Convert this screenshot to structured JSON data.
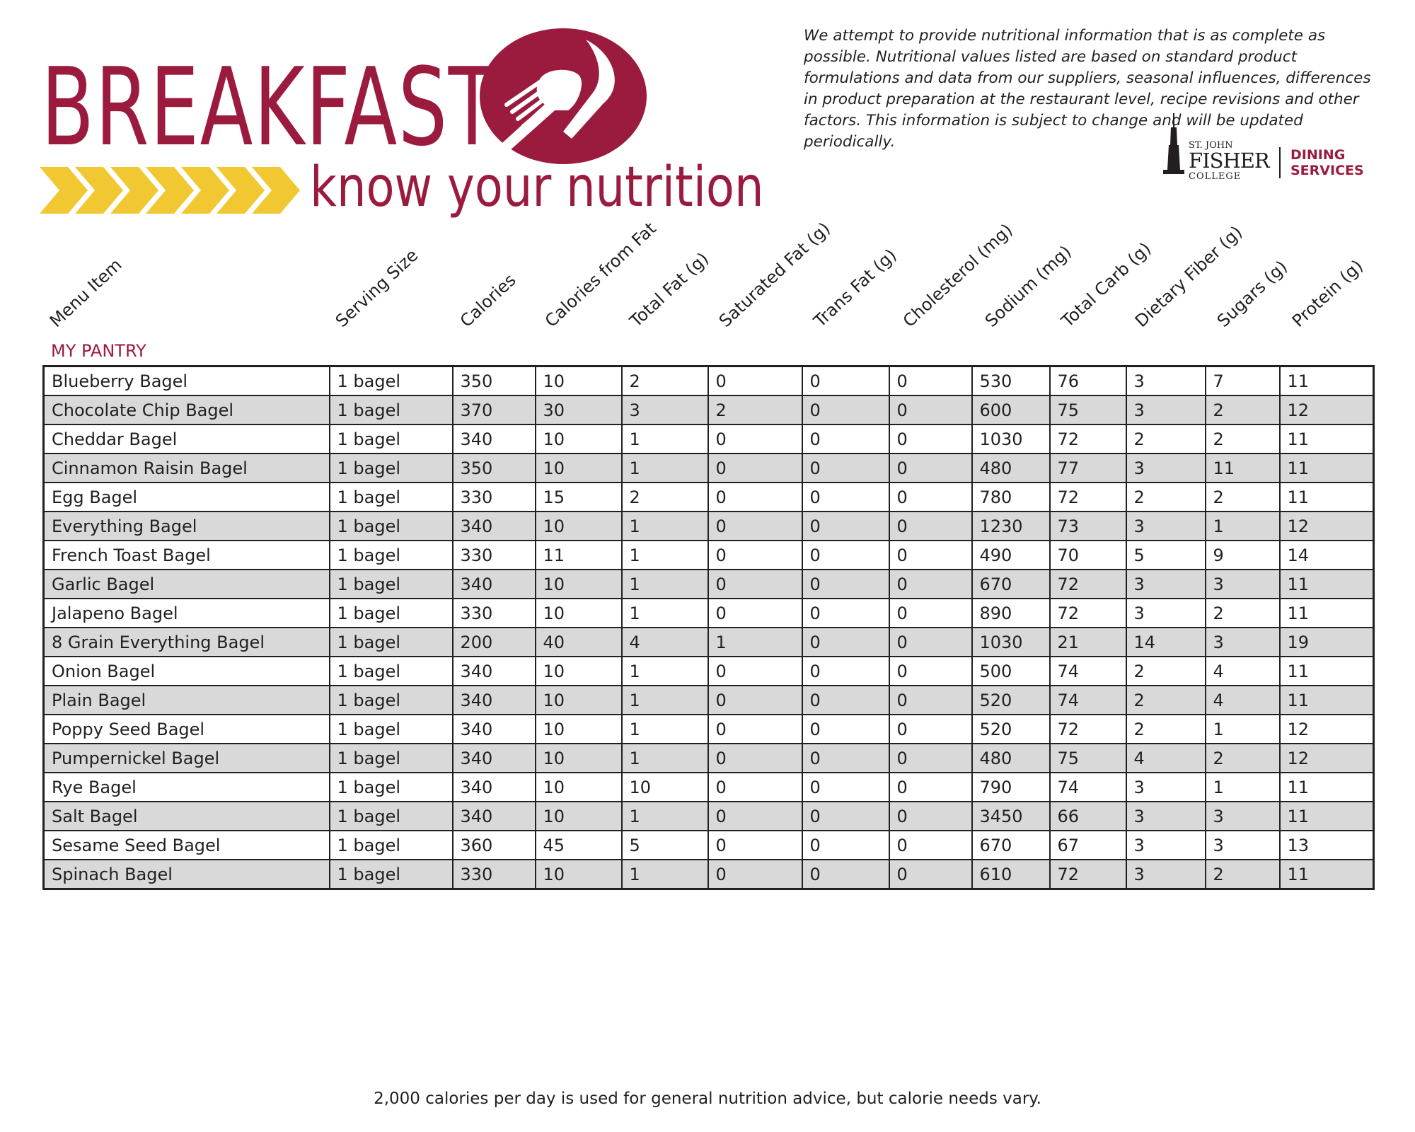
{
  "header": {
    "title": "BREAKFAST",
    "subtitle": "know your nutrition"
  },
  "disclaimer": "We attempt to provide nutritional information that is as complete as possible. Nutritional values listed are based on standard product formulations and data from our suppliers, seasonal influences, differences in product preparation at the restaurant level, recipe revisions and other factors. This information is subject to change and will be updated periodically.",
  "college_logo": {
    "line1": "ST. JOHN",
    "line2": "FISHER",
    "line3": "COLLEGE",
    "dining_line1": "DINING",
    "dining_line2": "SERVICES"
  },
  "colors": {
    "brand": "#9b1b3f",
    "arrows": "#f2c832",
    "row_shade": "#d9d9d9"
  },
  "icons": [
    "fork-knife-icon",
    "chevron-arrows-icon",
    "tower-icon"
  ],
  "table": {
    "section": "MY PANTRY",
    "columns": [
      "Menu Item",
      "Serving Size",
      "Calories",
      "Calories from Fat",
      "Total Fat (g)",
      "Saturated Fat (g)",
      "Trans Fat (g)",
      "Cholesterol (mg)",
      "Sodium (mg)",
      "Total Carb (g)",
      "Dietary Fiber (g)",
      "Sugars (g)",
      "Protein (g)"
    ],
    "rows": [
      [
        "Blueberry Bagel",
        "1 bagel",
        "350",
        "10",
        "2",
        "0",
        "0",
        "0",
        "530",
        "76",
        "3",
        "7",
        "11"
      ],
      [
        "Chocolate Chip Bagel",
        "1 bagel",
        "370",
        "30",
        "3",
        "2",
        "0",
        "0",
        "600",
        "75",
        "3",
        "2",
        "12"
      ],
      [
        "Cheddar Bagel",
        "1 bagel",
        "340",
        "10",
        "1",
        "0",
        "0",
        "0",
        "1030",
        "72",
        "2",
        "2",
        "11"
      ],
      [
        "Cinnamon Raisin Bagel",
        "1 bagel",
        "350",
        "10",
        "1",
        "0",
        "0",
        "0",
        "480",
        "77",
        "3",
        "11",
        "11"
      ],
      [
        "Egg Bagel",
        "1 bagel",
        "330",
        "15",
        "2",
        "0",
        "0",
        "0",
        "780",
        "72",
        "2",
        "2",
        "11"
      ],
      [
        "Everything Bagel",
        "1 bagel",
        "340",
        "10",
        "1",
        "0",
        "0",
        "0",
        "1230",
        "73",
        "3",
        "1",
        "12"
      ],
      [
        "French Toast Bagel",
        "1 bagel",
        "330",
        "11",
        "1",
        "0",
        "0",
        "0",
        "490",
        "70",
        "5",
        "9",
        "14"
      ],
      [
        "Garlic Bagel",
        "1 bagel",
        "340",
        "10",
        "1",
        "0",
        "0",
        "0",
        "670",
        "72",
        "3",
        "3",
        "11"
      ],
      [
        "Jalapeno Bagel",
        "1 bagel",
        "330",
        "10",
        "1",
        "0",
        "0",
        "0",
        "890",
        "72",
        "3",
        "2",
        "11"
      ],
      [
        "8 Grain Everything Bagel",
        "1 bagel",
        "200",
        "40",
        "4",
        "1",
        "0",
        "0",
        "1030",
        "21",
        "14",
        "3",
        "19"
      ],
      [
        "Onion Bagel",
        "1 bagel",
        "340",
        "10",
        "1",
        "0",
        "0",
        "0",
        "500",
        "74",
        "2",
        "4",
        "11"
      ],
      [
        "Plain Bagel",
        "1 bagel",
        "340",
        "10",
        "1",
        "0",
        "0",
        "0",
        "520",
        "74",
        "2",
        "4",
        "11"
      ],
      [
        "Poppy Seed Bagel",
        "1 bagel",
        "340",
        "10",
        "1",
        "0",
        "0",
        "0",
        "520",
        "72",
        "2",
        "1",
        "12"
      ],
      [
        "Pumpernickel Bagel",
        "1 bagel",
        "340",
        "10",
        "1",
        "0",
        "0",
        "0",
        "480",
        "75",
        "4",
        "2",
        "12"
      ],
      [
        "Rye Bagel",
        "1 bagel",
        "340",
        "10",
        "10",
        "0",
        "0",
        "0",
        "790",
        "74",
        "3",
        "1",
        "11"
      ],
      [
        "Salt Bagel",
        "1 bagel",
        "340",
        "10",
        "1",
        "0",
        "0",
        "0",
        "3450",
        "66",
        "3",
        "3",
        "11"
      ],
      [
        "Sesame Seed Bagel",
        "1 bagel",
        "360",
        "45",
        "5",
        "0",
        "0",
        "0",
        "670",
        "67",
        "3",
        "3",
        "13"
      ],
      [
        "Spinach Bagel",
        "1 bagel",
        "330",
        "10",
        "1",
        "0",
        "0",
        "0",
        "610",
        "72",
        "3",
        "2",
        "11"
      ]
    ]
  },
  "footer": "2,000 calories per day is used for general nutrition advice, but calorie needs vary."
}
